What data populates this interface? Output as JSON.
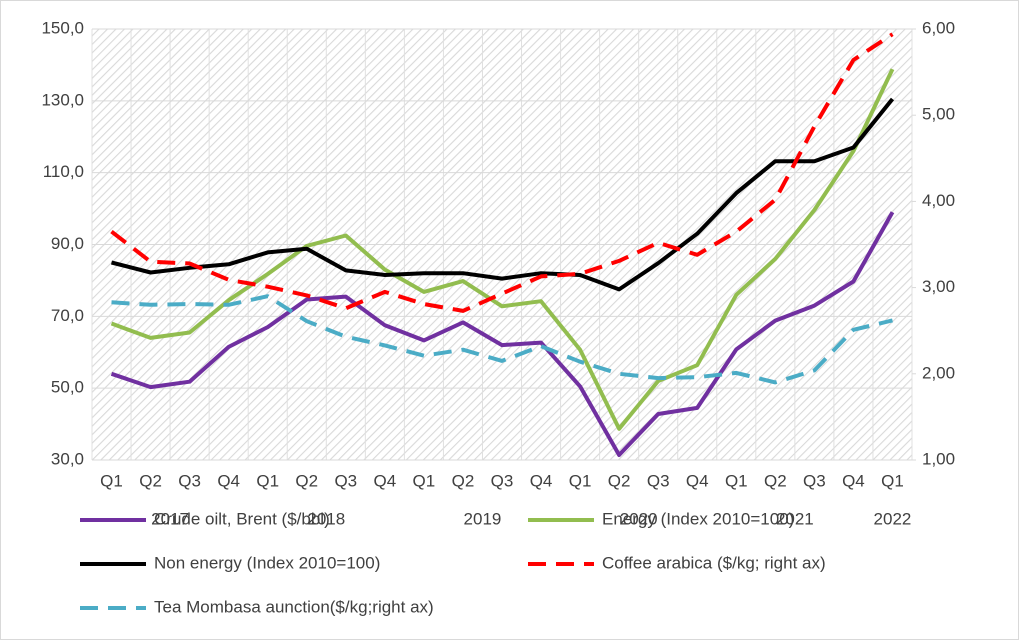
{
  "chart_data": {
    "type": "line",
    "categories": [
      "Q1",
      "Q2",
      "Q3",
      "Q4",
      "Q1",
      "Q2",
      "Q3",
      "Q4",
      "Q1",
      "Q2",
      "Q3",
      "Q4",
      "Q1",
      "Q2",
      "Q3",
      "Q4",
      "Q1",
      "Q2",
      "Q3",
      "Q4",
      "Q1"
    ],
    "years": [
      "2017",
      "2018",
      "2019",
      "2020",
      "2021",
      "2022"
    ],
    "ylim": [
      30,
      150
    ],
    "yticks": [
      {
        "value": 30,
        "label": "30,0"
      },
      {
        "value": 50,
        "label": "50,0"
      },
      {
        "value": 70,
        "label": "70,0"
      },
      {
        "value": 90,
        "label": "90,0"
      },
      {
        "value": 110,
        "label": "110,0"
      },
      {
        "value": 130,
        "label": "130,0"
      },
      {
        "value": 150,
        "label": "150,0"
      }
    ],
    "y2lim": [
      1,
      6
    ],
    "y2ticks": [
      {
        "value": 1,
        "label": "1,00"
      },
      {
        "value": 2,
        "label": "2,00"
      },
      {
        "value": 3,
        "label": "3,00"
      },
      {
        "value": 4,
        "label": "4,00"
      },
      {
        "value": 5,
        "label": "5,00"
      },
      {
        "value": 6,
        "label": "6,00"
      }
    ],
    "grid": true,
    "series": [
      {
        "name": "Crude oilt, Brent ($/bbl)",
        "color": "#7030a0",
        "style": "solid",
        "values": [
          54,
          50.3,
          51.8,
          61.5,
          67,
          74.7,
          75.5,
          67.5,
          63.3,
          68.3,
          62,
          62.7,
          50.5,
          31.4,
          42.8,
          44.5,
          60.8,
          68.8,
          73,
          79.7,
          99
        ]
      },
      {
        "name": "Energy (Index 2010=100)",
        "color": "#92bd4f",
        "style": "solid",
        "values": [
          68,
          64,
          65.5,
          74.5,
          81.8,
          89.6,
          92.5,
          83,
          76.8,
          79.8,
          72.8,
          74.2,
          60.7,
          38.7,
          52,
          56.4,
          76,
          86,
          99.6,
          116,
          138.8
        ]
      },
      {
        "name": "Non energy (Index 2010=100)",
        "color": "#000000",
        "style": "solid",
        "values": [
          85,
          82.2,
          83.5,
          84.5,
          87.8,
          88.8,
          82.8,
          81.5,
          82,
          82,
          80.5,
          82,
          81.5,
          77.5,
          84.8,
          93,
          104.3,
          113.2,
          113.2,
          117,
          130.5
        ]
      },
      {
        "name": "Coffee arabica ($/kg; right ax)",
        "color": "#ff0000",
        "style": "dashed",
        "axis": "y2",
        "values": [
          3.65,
          3.3,
          3.28,
          3.09,
          3.01,
          2.91,
          2.76,
          2.95,
          2.81,
          2.73,
          2.93,
          3.13,
          3.16,
          3.31,
          3.52,
          3.38,
          3.65,
          4.02,
          4.87,
          5.64,
          5.94
        ]
      },
      {
        "name": "Tea Mombasa aunction($/kg;right ax)",
        "color": "#4bacc6",
        "style": "dashed",
        "axis": "y2",
        "values": [
          2.83,
          2.8,
          2.81,
          2.8,
          2.9,
          2.61,
          2.43,
          2.33,
          2.21,
          2.28,
          2.15,
          2.32,
          2.14,
          2.0,
          1.95,
          1.96,
          2.01,
          1.9,
          2.04,
          2.51,
          2.62
        ]
      }
    ]
  }
}
